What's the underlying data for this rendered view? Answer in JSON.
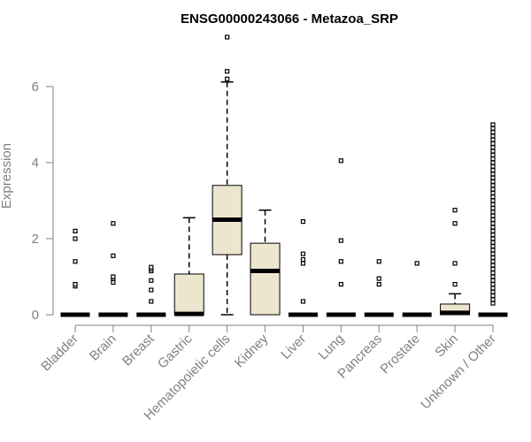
{
  "chart_data": {
    "type": "boxplot",
    "title": "ENSG00000243066 - Metazoa_SRP",
    "xlabel": "",
    "ylabel": "Expression",
    "ylim": [
      0,
      7.3
    ],
    "yticks": [
      0,
      2,
      4,
      6
    ],
    "grid": false,
    "legend": "none",
    "colors": {
      "box_fill": "#EDE6CF",
      "box_stroke": "#000000",
      "axis": "#808080",
      "title": "#000000"
    },
    "categories": [
      "Bladder",
      "Brain",
      "Breast",
      "Gastric",
      "Hematopoietic cells",
      "Kidney",
      "Liver",
      "Lung",
      "Pancreas",
      "Prostate",
      "Skin",
      "Unknown / Other"
    ],
    "boxes": [
      {
        "category": "Bladder",
        "whisker_low": 0,
        "q1": 0,
        "median": 0,
        "q3": 0,
        "whisker_high": 0,
        "outliers": [
          0.75,
          0.8,
          1.4,
          2.0,
          2.2
        ]
      },
      {
        "category": "Brain",
        "whisker_low": 0,
        "q1": 0,
        "median": 0,
        "q3": 0,
        "whisker_high": 0,
        "outliers": [
          0.85,
          0.95,
          1.0,
          1.55,
          2.4
        ]
      },
      {
        "category": "Breast",
        "whisker_low": 0,
        "q1": 0,
        "median": 0,
        "q3": 0,
        "whisker_high": 0,
        "outliers": [
          0.35,
          0.65,
          0.9,
          1.15,
          1.2,
          1.25
        ]
      },
      {
        "category": "Gastric",
        "whisker_low": 0,
        "q1": 0,
        "median": 0.02,
        "q3": 1.07,
        "whisker_high": 2.55,
        "outliers": []
      },
      {
        "category": "Hematopoietic cells",
        "whisker_low": 0,
        "q1": 1.58,
        "median": 2.5,
        "q3": 3.4,
        "whisker_high": 6.12,
        "outliers": [
          6.2,
          6.4,
          7.3
        ]
      },
      {
        "category": "Kidney",
        "whisker_low": 0,
        "q1": 0,
        "median": 1.15,
        "q3": 1.88,
        "whisker_high": 2.75,
        "outliers": []
      },
      {
        "category": "Liver",
        "whisker_low": 0,
        "q1": 0,
        "median": 0,
        "q3": 0,
        "whisker_high": 0,
        "outliers": [
          0.35,
          1.35,
          1.45,
          1.6,
          2.45
        ]
      },
      {
        "category": "Lung",
        "whisker_low": 0,
        "q1": 0,
        "median": 0,
        "q3": 0,
        "whisker_high": 0,
        "outliers": [
          0.8,
          1.4,
          1.95,
          4.05
        ]
      },
      {
        "category": "Pancreas",
        "whisker_low": 0,
        "q1": 0,
        "median": 0,
        "q3": 0,
        "whisker_high": 0,
        "outliers": [
          0.8,
          0.95,
          1.4
        ]
      },
      {
        "category": "Prostate",
        "whisker_low": 0,
        "q1": 0,
        "median": 0,
        "q3": 0,
        "whisker_high": 0,
        "outliers": [
          1.35
        ]
      },
      {
        "category": "Skin",
        "whisker_low": 0,
        "q1": 0,
        "median": 0.05,
        "q3": 0.28,
        "whisker_high": 0.55,
        "outliers": [
          0.8,
          1.35,
          2.4,
          2.75
        ]
      },
      {
        "category": "Unknown / Other",
        "whisker_low": 0,
        "q1": 0,
        "median": 0,
        "q3": 0,
        "whisker_high": 0,
        "outliers": [
          0.3,
          0.4,
          0.5,
          0.6,
          0.7,
          0.8,
          0.9,
          1.0,
          1.1,
          1.2,
          1.3,
          1.4,
          1.5,
          1.6,
          1.7,
          1.8,
          1.9,
          2.0,
          2.1,
          2.2,
          2.3,
          2.4,
          2.5,
          2.6,
          2.7,
          2.8,
          2.9,
          3.0,
          3.1,
          3.2,
          3.3,
          3.4,
          3.5,
          3.6,
          3.7,
          3.8,
          3.9,
          4.0,
          4.1,
          4.2,
          4.3,
          4.4,
          4.5,
          4.6,
          4.7,
          4.8,
          4.9,
          5.0
        ]
      }
    ]
  }
}
